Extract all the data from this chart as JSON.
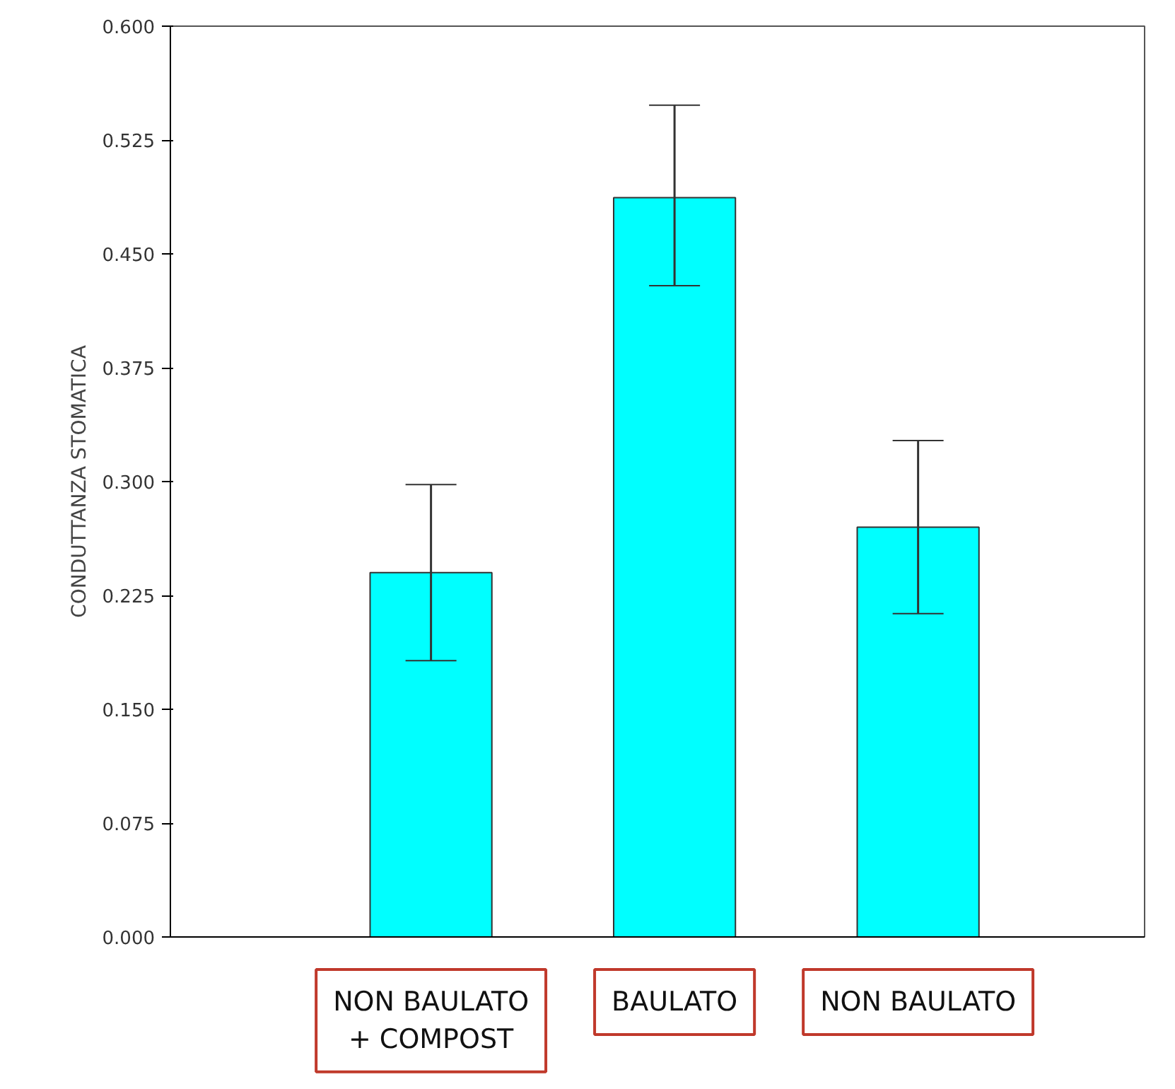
{
  "chart_data": {
    "type": "bar",
    "ylabel": "CONDUTTANZA STOMATICA",
    "categories": [
      "NON BAULATO\n+ COMPOST",
      "BAULATO",
      "NON BAULATO"
    ],
    "values": [
      0.24,
      0.487,
      0.27
    ],
    "errors": [
      [
        0.182,
        0.298
      ],
      [
        0.429,
        0.548
      ],
      [
        0.213,
        0.327
      ]
    ],
    "color": "#00ffff",
    "ylim": [
      0,
      0.6
    ],
    "yticks": [
      {
        "value": 0,
        "label": "0.000"
      },
      {
        "value": 0.075,
        "label": "0.075"
      },
      {
        "value": 0.15,
        "label": "0.150"
      },
      {
        "value": 0.225,
        "label": "0.225"
      },
      {
        "value": 0.3,
        "label": "0.300"
      },
      {
        "value": 0.375,
        "label": "0.375"
      },
      {
        "value": 0.45,
        "label": "0.450"
      },
      {
        "value": 0.525,
        "label": "0.525"
      },
      {
        "value": 0.6,
        "label": "0.600"
      }
    ],
    "grid": false
  }
}
